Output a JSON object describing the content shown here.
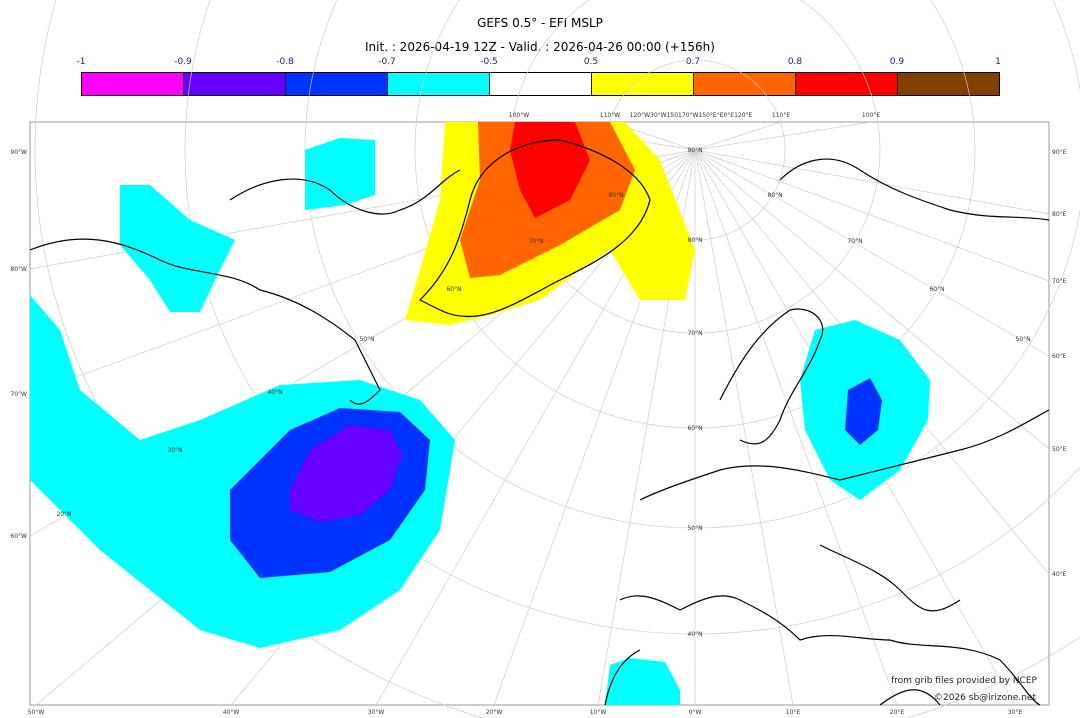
{
  "header": {
    "title": "GEFS 0.5° - EFI MSLP",
    "subtitle": "Init. : 2026-04-19 12Z - Valid. : 2026-04-26 00:00 (+156h)"
  },
  "colorbar": {
    "ticks": [
      "-1",
      "-0.9",
      "-0.8",
      "-0.7",
      "-0.5",
      "0.5",
      "0.7",
      "0.8",
      "0.9",
      "1"
    ],
    "colors": [
      "#ff00ff",
      "#6600ff",
      "#0033ff",
      "#00ffff",
      "#ffffff",
      "#ffff00",
      "#ff6600",
      "#ff0000",
      "#804000"
    ]
  },
  "axes": {
    "left": [
      "90°W",
      "80°W",
      "70°W",
      "60°W"
    ],
    "right": [
      "90°E",
      "80°E",
      "70°E",
      "60°E",
      "50°E",
      "40°E"
    ],
    "top": [
      "100°W",
      "110°W",
      "120°W30°W150170°W150°E°E0°E120°E",
      "110°E",
      "100°E"
    ],
    "bottom": [
      "50°W",
      "40°W",
      "30°W",
      "20°W",
      "10°W",
      "0°W",
      "10°E",
      "20°E",
      "30°E"
    ],
    "lat_labels": [
      "90°N",
      "80°N",
      "70°N",
      "60°N",
      "50°N",
      "40°N",
      "50°N",
      "60°N",
      "70°N",
      "80°N",
      "40°N",
      "30°N",
      "20°N",
      "80°N",
      "70°N",
      "60°N",
      "50°N"
    ]
  },
  "credits": {
    "source": "from grib files provided by NCEP",
    "copyright": "©2026 sb@irizone.net"
  }
}
